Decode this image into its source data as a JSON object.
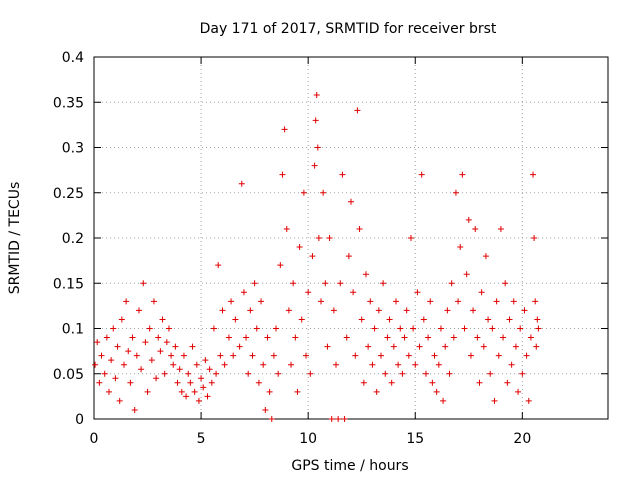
{
  "chart_data": {
    "type": "scatter",
    "title": "Day 171 of 2017, SRMTID for receiver brst",
    "xlabel": "GPS time / hours",
    "ylabel": "SRMTID / TECUs",
    "xlim": [
      0,
      24
    ],
    "ylim": [
      0,
      0.4
    ],
    "grid": true,
    "marker": "+",
    "marker_color": "#e00000",
    "x_ticks": [
      0,
      5,
      10,
      15,
      20
    ],
    "x_tick_labels": [
      "0",
      "5",
      "10",
      "15",
      "20"
    ],
    "y_ticks": [
      0,
      0.05,
      0.1,
      0.15,
      0.2,
      0.25,
      0.3,
      0.35,
      0.4
    ],
    "y_tick_labels": [
      "0",
      "0.05",
      "0.1",
      "0.15",
      "0.2",
      "0.25",
      "0.3",
      "0.35",
      "0.4"
    ],
    "series": [
      {
        "name": "SRMTID",
        "points": [
          [
            0.05,
            0.06
          ],
          [
            0.15,
            0.085
          ],
          [
            0.25,
            0.04
          ],
          [
            0.35,
            0.07
          ],
          [
            0.5,
            0.05
          ],
          [
            0.6,
            0.09
          ],
          [
            0.7,
            0.03
          ],
          [
            0.8,
            0.065
          ],
          [
            0.9,
            0.1
          ],
          [
            1.0,
            0.045
          ],
          [
            1.1,
            0.08
          ],
          [
            1.2,
            0.02
          ],
          [
            1.3,
            0.11
          ],
          [
            1.4,
            0.06
          ],
          [
            1.5,
            0.13
          ],
          [
            1.6,
            0.075
          ],
          [
            1.7,
            0.04
          ],
          [
            1.8,
            0.09
          ],
          [
            1.9,
            0.01
          ],
          [
            2.0,
            0.07
          ],
          [
            2.1,
            0.12
          ],
          [
            2.2,
            0.055
          ],
          [
            2.3,
            0.15
          ],
          [
            2.4,
            0.085
          ],
          [
            2.5,
            0.03
          ],
          [
            2.6,
            0.1
          ],
          [
            2.7,
            0.065
          ],
          [
            2.8,
            0.13
          ],
          [
            2.9,
            0.045
          ],
          [
            3.0,
            0.09
          ],
          [
            3.1,
            0.075
          ],
          [
            3.2,
            0.11
          ],
          [
            3.3,
            0.05
          ],
          [
            3.4,
            0.085
          ],
          [
            3.5,
            0.1
          ],
          [
            3.6,
            0.07
          ],
          [
            3.7,
            0.06
          ],
          [
            3.8,
            0.08
          ],
          [
            3.9,
            0.04
          ],
          [
            4.0,
            0.055
          ],
          [
            4.1,
            0.03
          ],
          [
            4.2,
            0.07
          ],
          [
            4.3,
            0.025
          ],
          [
            4.4,
            0.05
          ],
          [
            4.5,
            0.04
          ],
          [
            4.6,
            0.08
          ],
          [
            4.7,
            0.03
          ],
          [
            4.8,
            0.06
          ],
          [
            4.9,
            0.02
          ],
          [
            5.0,
            0.045
          ],
          [
            5.1,
            0.035
          ],
          [
            5.2,
            0.065
          ],
          [
            5.3,
            0.025
          ],
          [
            5.4,
            0.055
          ],
          [
            5.5,
            0.04
          ],
          [
            5.6,
            0.1
          ],
          [
            5.7,
            0.05
          ],
          [
            5.8,
            0.17
          ],
          [
            5.9,
            0.07
          ],
          [
            6.0,
            0.12
          ],
          [
            6.1,
            0.06
          ],
          [
            6.3,
            0.09
          ],
          [
            6.4,
            0.13
          ],
          [
            6.5,
            0.07
          ],
          [
            6.6,
            0.11
          ],
          [
            6.8,
            0.08
          ],
          [
            6.9,
            0.26
          ],
          [
            7.0,
            0.14
          ],
          [
            7.1,
            0.09
          ],
          [
            7.2,
            0.05
          ],
          [
            7.3,
            0.12
          ],
          [
            7.4,
            0.07
          ],
          [
            7.5,
            0.15
          ],
          [
            7.6,
            0.1
          ],
          [
            7.7,
            0.04
          ],
          [
            7.8,
            0.13
          ],
          [
            7.9,
            0.06
          ],
          [
            8.0,
            0.01
          ],
          [
            8.1,
            0.09
          ],
          [
            8.2,
            0.03
          ],
          [
            8.3,
            0.0
          ],
          [
            8.4,
            0.07
          ],
          [
            8.5,
            0.1
          ],
          [
            8.6,
            0.05
          ],
          [
            8.7,
            0.17
          ],
          [
            8.8,
            0.27
          ],
          [
            8.9,
            0.32
          ],
          [
            9.0,
            0.21
          ],
          [
            9.1,
            0.12
          ],
          [
            9.2,
            0.06
          ],
          [
            9.3,
            0.15
          ],
          [
            9.4,
            0.09
          ],
          [
            9.5,
            0.03
          ],
          [
            9.6,
            0.19
          ],
          [
            9.7,
            0.11
          ],
          [
            9.8,
            0.25
          ],
          [
            9.9,
            0.07
          ],
          [
            10.0,
            0.14
          ],
          [
            10.1,
            0.05
          ],
          [
            10.2,
            0.18
          ],
          [
            10.3,
            0.28
          ],
          [
            10.35,
            0.33
          ],
          [
            10.4,
            0.358
          ],
          [
            10.45,
            0.3
          ],
          [
            10.5,
            0.2
          ],
          [
            10.6,
            0.13
          ],
          [
            10.7,
            0.25
          ],
          [
            10.8,
            0.15
          ],
          [
            10.9,
            0.08
          ],
          [
            11.0,
            0.2
          ],
          [
            11.1,
            0.0
          ],
          [
            11.2,
            0.12
          ],
          [
            11.3,
            0.06
          ],
          [
            11.4,
            0.0
          ],
          [
            11.5,
            0.15
          ],
          [
            11.6,
            0.27
          ],
          [
            11.7,
            0.0
          ],
          [
            11.8,
            0.09
          ],
          [
            11.9,
            0.18
          ],
          [
            12.0,
            0.24
          ],
          [
            12.1,
            0.14
          ],
          [
            12.2,
            0.07
          ],
          [
            12.3,
            0.341
          ],
          [
            12.4,
            0.21
          ],
          [
            12.5,
            0.11
          ],
          [
            12.6,
            0.04
          ],
          [
            12.7,
            0.16
          ],
          [
            12.8,
            0.08
          ],
          [
            12.9,
            0.13
          ],
          [
            13.0,
            0.06
          ],
          [
            13.1,
            0.1
          ],
          [
            13.2,
            0.03
          ],
          [
            13.3,
            0.12
          ],
          [
            13.4,
            0.07
          ],
          [
            13.5,
            0.15
          ],
          [
            13.6,
            0.05
          ],
          [
            13.7,
            0.09
          ],
          [
            13.8,
            0.11
          ],
          [
            13.9,
            0.04
          ],
          [
            14.0,
            0.08
          ],
          [
            14.1,
            0.13
          ],
          [
            14.2,
            0.06
          ],
          [
            14.3,
            0.1
          ],
          [
            14.4,
            0.05
          ],
          [
            14.5,
            0.09
          ],
          [
            14.6,
            0.12
          ],
          [
            14.7,
            0.07
          ],
          [
            14.8,
            0.2
          ],
          [
            14.9,
            0.1
          ],
          [
            15.0,
            0.06
          ],
          [
            15.1,
            0.14
          ],
          [
            15.2,
            0.08
          ],
          [
            15.3,
            0.27
          ],
          [
            15.4,
            0.11
          ],
          [
            15.5,
            0.05
          ],
          [
            15.6,
            0.09
          ],
          [
            15.7,
            0.13
          ],
          [
            15.8,
            0.04
          ],
          [
            15.9,
            0.07
          ],
          [
            16.0,
            0.03
          ],
          [
            16.1,
            0.06
          ],
          [
            16.2,
            0.1
          ],
          [
            16.3,
            0.02
          ],
          [
            16.4,
            0.08
          ],
          [
            16.5,
            0.12
          ],
          [
            16.6,
            0.05
          ],
          [
            16.7,
            0.15
          ],
          [
            16.8,
            0.09
          ],
          [
            16.9,
            0.25
          ],
          [
            17.0,
            0.13
          ],
          [
            17.1,
            0.19
          ],
          [
            17.2,
            0.27
          ],
          [
            17.3,
            0.1
          ],
          [
            17.4,
            0.16
          ],
          [
            17.5,
            0.22
          ],
          [
            17.6,
            0.07
          ],
          [
            17.7,
            0.12
          ],
          [
            17.8,
            0.21
          ],
          [
            17.9,
            0.09
          ],
          [
            18.0,
            0.04
          ],
          [
            18.1,
            0.14
          ],
          [
            18.2,
            0.08
          ],
          [
            18.3,
            0.18
          ],
          [
            18.4,
            0.11
          ],
          [
            18.5,
            0.05
          ],
          [
            18.6,
            0.1
          ],
          [
            18.7,
            0.02
          ],
          [
            18.8,
            0.13
          ],
          [
            18.9,
            0.07
          ],
          [
            19.0,
            0.21
          ],
          [
            19.1,
            0.09
          ],
          [
            19.2,
            0.15
          ],
          [
            19.3,
            0.04
          ],
          [
            19.4,
            0.11
          ],
          [
            19.5,
            0.06
          ],
          [
            19.6,
            0.13
          ],
          [
            19.7,
            0.08
          ],
          [
            19.8,
            0.03
          ],
          [
            19.9,
            0.1
          ],
          [
            20.0,
            0.05
          ],
          [
            20.1,
            0.12
          ],
          [
            20.2,
            0.07
          ],
          [
            20.3,
            0.02
          ],
          [
            20.4,
            0.09
          ],
          [
            20.5,
            0.27
          ],
          [
            20.55,
            0.2
          ],
          [
            20.6,
            0.13
          ],
          [
            20.65,
            0.08
          ],
          [
            20.7,
            0.11
          ],
          [
            20.75,
            0.1
          ]
        ]
      }
    ]
  }
}
